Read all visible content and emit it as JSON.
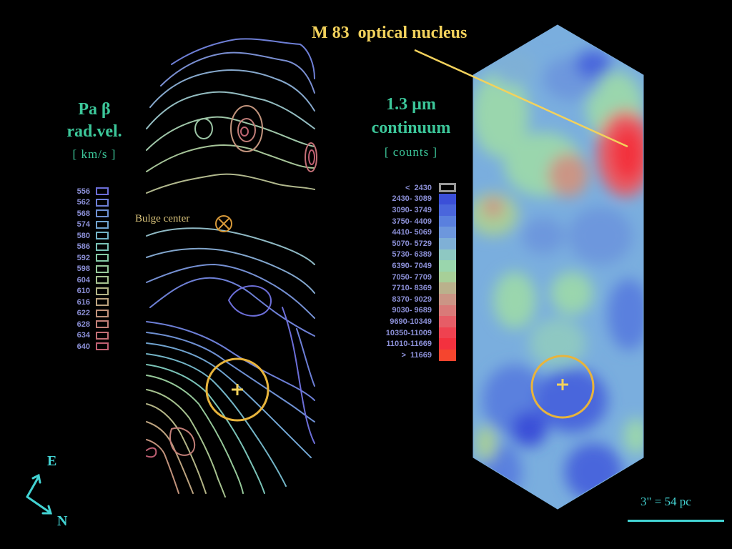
{
  "left_panel": {
    "title_line1": "Pa β",
    "title_line2": "rad.vel.",
    "units": "[ km/s ]",
    "bulge_label": "Bulge center",
    "legend": [
      {
        "label": "556",
        "color": "#6c6ed8"
      },
      {
        "label": "562",
        "color": "#6d7fd6"
      },
      {
        "label": "568",
        "color": "#6e90d2"
      },
      {
        "label": "574",
        "color": "#70a3cf"
      },
      {
        "label": "580",
        "color": "#73b4c6"
      },
      {
        "label": "586",
        "color": "#7ac3b7"
      },
      {
        "label": "592",
        "color": "#86cba6"
      },
      {
        "label": "598",
        "color": "#96c99a"
      },
      {
        "label": "604",
        "color": "#a6c28f"
      },
      {
        "label": "610",
        "color": "#b3b486"
      },
      {
        "label": "616",
        "color": "#bca37f"
      },
      {
        "label": "622",
        "color": "#c1927b"
      },
      {
        "label": "628",
        "color": "#c37f78"
      },
      {
        "label": "634",
        "color": "#c26e75"
      },
      {
        "label": "640",
        "color": "#bf5f72"
      }
    ]
  },
  "right_panel": {
    "title_line1": "1.3 µm",
    "title_line2": "continuum",
    "units": "[ counts ]",
    "legend": [
      {
        "label": "<  2430",
        "color": "#000000",
        "outline": true
      },
      {
        "label": "2430- 3089",
        "color": "#3b4fd8"
      },
      {
        "label": "3090- 3749",
        "color": "#4a66dc"
      },
      {
        "label": "3750- 4409",
        "color": "#5a80de"
      },
      {
        "label": "4410- 5069",
        "color": "#6d97dd"
      },
      {
        "label": "5070- 5729",
        "color": "#7fb0d6"
      },
      {
        "label": "5730- 6389",
        "color": "#8ec8c2"
      },
      {
        "label": "6390- 7049",
        "color": "#9ad6ad"
      },
      {
        "label": "7050- 7709",
        "color": "#a7cf98"
      },
      {
        "label": "7710- 8369",
        "color": "#bab18c"
      },
      {
        "label": "8370- 9029",
        "color": "#cb9585"
      },
      {
        "label": "9030- 9689",
        "color": "#d97a78"
      },
      {
        "label": "9690-10349",
        "color": "#e65d66"
      },
      {
        "label": "10350-11009",
        "color": "#ef4250"
      },
      {
        "label": "11010-11669",
        "color": "#f3313e"
      },
      {
        "label": ">  11669",
        "color": "#f5452e"
      }
    ]
  },
  "annotation": {
    "nucleus_label": "M 83  optical nucleus"
  },
  "scale": {
    "label": "3\" = 54 pc"
  },
  "compass": {
    "east": "E",
    "north": "N"
  },
  "colors": {
    "title": "#3cc79a",
    "annotation": "#f3d25c",
    "compass": "#43d3d3",
    "marker": "#e8b43c"
  }
}
